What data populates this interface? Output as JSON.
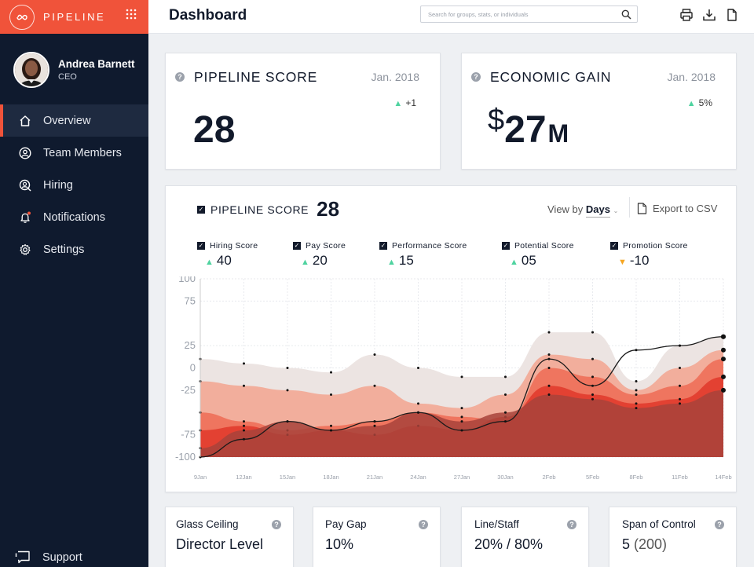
{
  "brand": {
    "name": "PIPELINE"
  },
  "user": {
    "name": "Andrea Barnett",
    "role": "CEO"
  },
  "nav": [
    {
      "label": "Overview",
      "icon": "home-icon",
      "active": true
    },
    {
      "label": "Team Members",
      "icon": "user-circle-icon"
    },
    {
      "label": "Hiring",
      "icon": "person-search-icon"
    },
    {
      "label": "Notifications",
      "icon": "bell-icon"
    },
    {
      "label": "Settings",
      "icon": "gear-icon"
    }
  ],
  "support_label": "Support",
  "header": {
    "title": "Dashboard",
    "search_placeholder": "Search for groups, stats, or individuals"
  },
  "kpis": {
    "pipeline": {
      "title": "PIPELINE SCORE",
      "date": "Jan. 2018",
      "delta": "+1",
      "value": "28"
    },
    "gain": {
      "title": "ECONOMIC GAIN",
      "date": "Jan. 2018",
      "delta": "5%",
      "currency": "$",
      "value": "27",
      "unit": "M"
    }
  },
  "main": {
    "title": "PIPELINE SCORE",
    "score": "28",
    "view_by_prefix": "View by",
    "view_by_value": "Days",
    "export_label": "Export to CSV",
    "subscores": [
      {
        "label": "Hiring Score",
        "value": "40",
        "trend": "up"
      },
      {
        "label": "Pay Score",
        "value": "20",
        "trend": "up"
      },
      {
        "label": "Performance Score",
        "value": "15",
        "trend": "up"
      },
      {
        "label": "Potential Score",
        "value": "05",
        "trend": "up"
      },
      {
        "label": "Promotion Score",
        "value": "-10",
        "trend": "down"
      }
    ]
  },
  "chart_data": {
    "type": "area",
    "x": [
      "9Jan",
      "12Jan",
      "15Jan",
      "18Jan",
      "21Jan",
      "24Jan",
      "27Jan",
      "30Jan",
      "2Feb",
      "5Feb",
      "8Feb",
      "11Feb",
      "14Feb"
    ],
    "y_ticks": [
      "100",
      "75",
      "25",
      "0",
      "-25",
      "-75",
      "-100"
    ],
    "series": [
      {
        "values": [
          10,
          5,
          0,
          -5,
          15,
          0,
          -10,
          -10,
          40,
          40,
          -15,
          25,
          35
        ],
        "color": "#ece4e2"
      },
      {
        "values": [
          -15,
          -20,
          -25,
          -30,
          -20,
          -40,
          -45,
          -30,
          15,
          10,
          -25,
          0,
          20
        ],
        "color": "#f3a48f"
      },
      {
        "values": [
          -50,
          -60,
          -70,
          -65,
          -60,
          -50,
          -55,
          -60,
          0,
          -10,
          -30,
          -20,
          10
        ],
        "color": "#ee6b55"
      },
      {
        "values": [
          -70,
          -65,
          -75,
          -70,
          -75,
          -65,
          -70,
          -55,
          -20,
          -30,
          -40,
          -35,
          -10
        ],
        "color": "#e0382a"
      },
      {
        "values": [
          -90,
          -70,
          -60,
          -70,
          -65,
          -50,
          -60,
          -50,
          -30,
          -35,
          -45,
          -40,
          -25
        ],
        "color": "#a8433b"
      }
    ],
    "line": [
      -100,
      -80,
      -60,
      -70,
      -60,
      -50,
      -70,
      -60,
      10,
      -20,
      20,
      25,
      35
    ]
  },
  "stats": [
    {
      "label": "Glass Ceiling",
      "value": "Director Level",
      "extra": ""
    },
    {
      "label": "Pay Gap",
      "value": "10%",
      "extra": ""
    },
    {
      "label": "Line/Staff",
      "value": "20% / 80%",
      "extra": ""
    },
    {
      "label": "Span of Control",
      "value": "5",
      "extra": " (200)"
    }
  ]
}
